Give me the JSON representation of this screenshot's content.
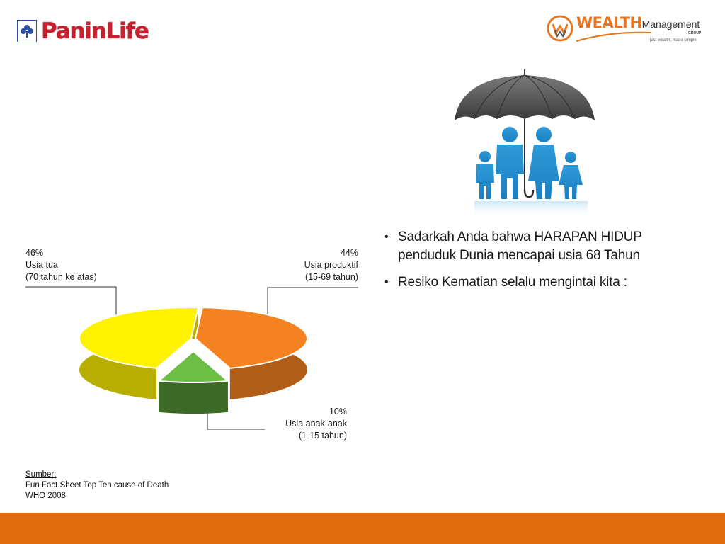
{
  "header": {
    "left_logo": {
      "brand": "PaninLife",
      "icon": "clover-icon",
      "color": "#c8202f"
    },
    "right_logo": {
      "brand_word": "WEALTH",
      "brand_suffix": "Management",
      "group": "GROUP",
      "tagline": "just wealth, made simple",
      "icon": "wm-monogram-icon",
      "color": "#e67620"
    }
  },
  "illustration": {
    "icon": "umbrella-family-icon"
  },
  "bullets": [
    "Sadarkah Anda bahwa HARAPAN HIDUP penduduk Dunia mencapai usia 68 Tahun",
    "Resiko Kematian selalu mengintai kita :"
  ],
  "chart_data": {
    "type": "pie",
    "style": "3d",
    "slices": [
      {
        "value": 46,
        "percent_label": "46%",
        "name": "Usia tua",
        "range": "(70 tahun ke atas)",
        "color": "#fff200"
      },
      {
        "value": 44,
        "percent_label": "44%",
        "name": "Usia produktif",
        "range": "(15-69 tahun)",
        "color": "#f58220"
      },
      {
        "value": 10,
        "percent_label": "10%",
        "name": "Usia anak-anak",
        "range": "(1-15 tahun)",
        "color": "#6dbe45"
      }
    ],
    "title": "",
    "legend": "none"
  },
  "source": {
    "title": "Sumber:",
    "lines": [
      "Fun Fact Sheet Top Ten cause of Death",
      "WHO 2008"
    ]
  },
  "footer": {
    "color": "#e06b0c"
  }
}
